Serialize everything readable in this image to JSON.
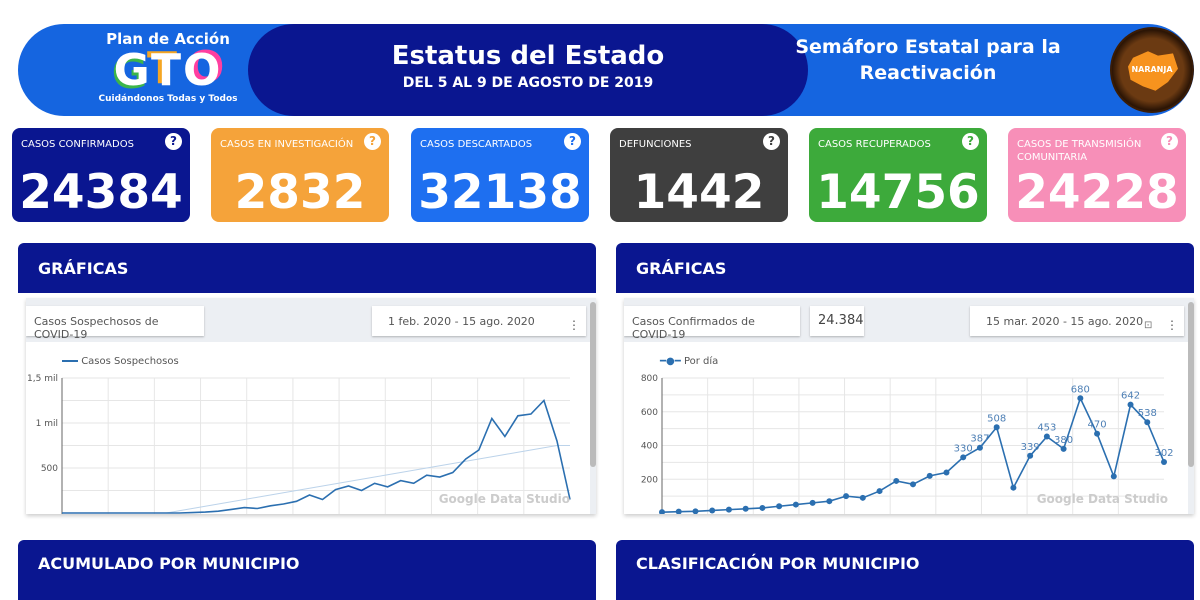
{
  "banner": {
    "logo_top": "Plan de Acción",
    "logo_main": "GTO",
    "logo_sub": "Cuidándonos Todas y Todos",
    "title": "Estatus del Estado",
    "subtitle": "DEL 5 AL 9 DE AGOSTO DE 2019",
    "semaforo_title": "Semáforo Estatal para la Reactivación",
    "semaforo_level": "NARANJA",
    "semaforo_color": "#f7931e"
  },
  "cards": [
    {
      "label": "CASOS CONFIRMADOS",
      "value": "24384",
      "color": "#0a1690"
    },
    {
      "label": "CASOS EN INVESTIGACIÓN",
      "value": "2832",
      "color": "#f5a33a"
    },
    {
      "label": "CASOS DESCARTADOS",
      "value": "32138",
      "color": "#1e6ff0"
    },
    {
      "label": "DEFUNCIONES",
      "value": "1442",
      "color": "#3f3f3f"
    },
    {
      "label": "CASOS RECUPERADOS",
      "value": "14756",
      "color": "#3daa3b"
    },
    {
      "label": "CASOS DE TRANSMISIÓN COMUNITARIA",
      "value": "24228",
      "color": "#f78fb8"
    }
  ],
  "panels": {
    "left_title": "GRÁFICAS",
    "right_title": "GRÁFICAS",
    "bottom_left_title": "ACUMULADO POR MUNICIPIO",
    "bottom_right_title": "CLASIFICACIÓN POR MUNICIPIO"
  },
  "left_chart_ui": {
    "title": "Casos Sospechosos de COVID-19",
    "date_range": "1 feb. 2020 - 15 ago. 2020",
    "watermark": "Google Data Studio"
  },
  "right_chart_ui": {
    "title": "Casos Confirmados de COVID-19",
    "total": "24.384",
    "date_range": "15 mar. 2020 - 15 ago. 2020",
    "watermark": "Google Data Studio"
  },
  "chart_data": [
    {
      "type": "line",
      "series": [
        {
          "name": "Casos Sospechosos",
          "color": "#2b6fb0",
          "x": [
            "2020-02-01",
            "2020-02-06",
            "2020-02-11",
            "2020-02-16",
            "2020-02-21",
            "2020-02-26",
            "2020-03-02",
            "2020-03-07",
            "2020-03-12",
            "2020-03-17",
            "2020-03-22",
            "2020-03-27",
            "2020-04-01",
            "2020-04-06",
            "2020-04-11",
            "2020-04-16",
            "2020-04-21",
            "2020-04-26",
            "2020-05-01",
            "2020-05-06",
            "2020-05-11",
            "2020-05-16",
            "2020-05-21",
            "2020-05-26",
            "2020-05-31",
            "2020-06-05",
            "2020-06-10",
            "2020-06-15",
            "2020-06-20",
            "2020-06-25",
            "2020-06-30",
            "2020-07-05",
            "2020-07-10",
            "2020-07-15",
            "2020-07-20",
            "2020-07-25",
            "2020-07-30",
            "2020-08-04",
            "2020-08-09",
            "2020-08-14"
          ],
          "values": [
            0,
            0,
            0,
            0,
            0,
            0,
            0,
            0,
            0,
            0,
            5,
            10,
            20,
            40,
            60,
            50,
            80,
            100,
            130,
            200,
            150,
            260,
            300,
            250,
            330,
            290,
            360,
            330,
            420,
            400,
            450,
            600,
            700,
            1050,
            850,
            1080,
            1100,
            1250,
            800,
            150
          ]
        }
      ],
      "yticks": [
        "500",
        "1 mil",
        "1,5 mil"
      ],
      "ytick_values": [
        500,
        1000,
        1500
      ],
      "ylim": [
        0,
        1500
      ],
      "trendline": true,
      "grid": true,
      "legend": "top-left"
    },
    {
      "type": "line",
      "series": [
        {
          "name": "Por día",
          "color": "#2b6fb0",
          "x": [
            "2020-03-15",
            "2020-03-20",
            "2020-03-25",
            "2020-03-30",
            "2020-04-04",
            "2020-04-09",
            "2020-04-14",
            "2020-04-19",
            "2020-04-24",
            "2020-04-29",
            "2020-05-04",
            "2020-05-09",
            "2020-05-14",
            "2020-05-19",
            "2020-05-24",
            "2020-05-29",
            "2020-06-03",
            "2020-06-08",
            "2020-06-13",
            "2020-06-18",
            "2020-06-23",
            "2020-06-28",
            "2020-07-03",
            "2020-07-08",
            "2020-07-13",
            "2020-07-18",
            "2020-07-23",
            "2020-07-28",
            "2020-08-02",
            "2020-08-07",
            "2020-08-12"
          ],
          "values": [
            5,
            8,
            10,
            15,
            20,
            25,
            30,
            40,
            50,
            60,
            70,
            100,
            90,
            130,
            190,
            170,
            220,
            240,
            330,
            387,
            508,
            150,
            339,
            453,
            380,
            680,
            470,
            217,
            642,
            538,
            302
          ]
        }
      ],
      "yticks": [
        "200",
        "400",
        "600",
        "800"
      ],
      "ytick_values": [
        200,
        400,
        600,
        800
      ],
      "ylim": [
        0,
        800
      ],
      "data_labels": true,
      "markers": true,
      "grid": true,
      "legend": "top-left"
    }
  ]
}
